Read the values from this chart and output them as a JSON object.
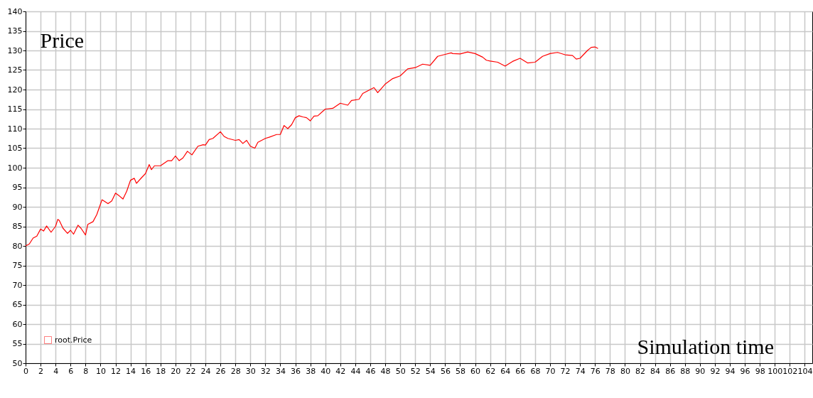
{
  "chart_data": {
    "type": "line",
    "xlabel": "Simulation time",
    "ylabel": "Price",
    "x": [
      0,
      0.5,
      1,
      1.5,
      2,
      2.4,
      2.8,
      3.4,
      4,
      4.3,
      4.5,
      5,
      5.6,
      6,
      6.4,
      7,
      7.4,
      8,
      8.3,
      9,
      9.5,
      10.2,
      11,
      11.5,
      12,
      12.5,
      13,
      13.5,
      14,
      14.5,
      14.8,
      15.5,
      16,
      16.5,
      16.8,
      17.2,
      18,
      19,
      19.5,
      20,
      20.5,
      21,
      21.6,
      22.2,
      23,
      23.7,
      24,
      24.5,
      25,
      26,
      26.5,
      27,
      28,
      28.5,
      29,
      29.5,
      30,
      30.6,
      31,
      32,
      32.5,
      33.5,
      34,
      34.5,
      35,
      35.5,
      36,
      36.5,
      37,
      37.5,
      38,
      38.5,
      39,
      40,
      41,
      42,
      43,
      43.5,
      44.5,
      45,
      46,
      46.5,
      47,
      48,
      49,
      50,
      51,
      52,
      53,
      54,
      55,
      56,
      56.8,
      57,
      58,
      59,
      60,
      61,
      61.5,
      62,
      63,
      64,
      65,
      66,
      67,
      68,
      69,
      70,
      71,
      72,
      73,
      73.5,
      74,
      75,
      75.5,
      76,
      76.4
    ],
    "series": [
      {
        "name": "root.Price",
        "color": "#ff0000",
        "values": [
          80,
          80.5,
          82,
          82.5,
          84.3,
          83.8,
          85.1,
          83.5,
          85,
          86.8,
          86.5,
          84.5,
          83.2,
          84,
          83,
          85.3,
          84.5,
          82.8,
          85.5,
          86.2,
          88,
          91.8,
          90.8,
          91.5,
          93.5,
          92.8,
          92,
          94,
          96.8,
          97.3,
          96,
          97.5,
          98.5,
          100.8,
          99.5,
          100.5,
          100.5,
          101.8,
          101.8,
          103,
          101.8,
          102.5,
          104.2,
          103.3,
          105.5,
          105.9,
          105.8,
          107.2,
          107.5,
          109.2,
          108,
          107.5,
          107,
          107.2,
          106.2,
          107,
          105.5,
          105,
          106.5,
          107.5,
          107.8,
          108.5,
          108.5,
          110.8,
          110,
          111,
          112.8,
          113.3,
          113,
          112.8,
          112,
          113.2,
          113.3,
          115,
          115.2,
          116.5,
          116,
          117.2,
          117.5,
          119,
          120,
          120.5,
          119.2,
          121.4,
          122.8,
          123.5,
          125.3,
          125.6,
          126.5,
          126.2,
          128.5,
          129,
          129.4,
          129.2,
          129.1,
          129.6,
          129.2,
          128.3,
          127.5,
          127.3,
          127,
          126,
          127.2,
          128,
          126.8,
          127,
          128.5,
          129.2,
          129.5,
          128.9,
          128.7,
          127.8,
          128,
          130,
          130.8,
          130.9,
          130.5
        ]
      }
    ],
    "xlim": [
      0,
      105
    ],
    "xticks": [
      0,
      2,
      4,
      6,
      8,
      10,
      12,
      14,
      16,
      18,
      20,
      22,
      24,
      26,
      28,
      30,
      32,
      34,
      36,
      38,
      40,
      42,
      44,
      46,
      48,
      50,
      52,
      54,
      56,
      58,
      60,
      62,
      64,
      66,
      68,
      70,
      72,
      74,
      76,
      78,
      80,
      82,
      84,
      86,
      88,
      90,
      92,
      94,
      96,
      98,
      100,
      102,
      104
    ],
    "ylim": [
      50,
      140
    ],
    "yticks": [
      50,
      55,
      60,
      65,
      70,
      75,
      80,
      85,
      90,
      95,
      100,
      105,
      110,
      115,
      120,
      125,
      130,
      135,
      140
    ],
    "grid": true,
    "legend": "bottom left",
    "line_style": "solid",
    "marker": "none"
  }
}
